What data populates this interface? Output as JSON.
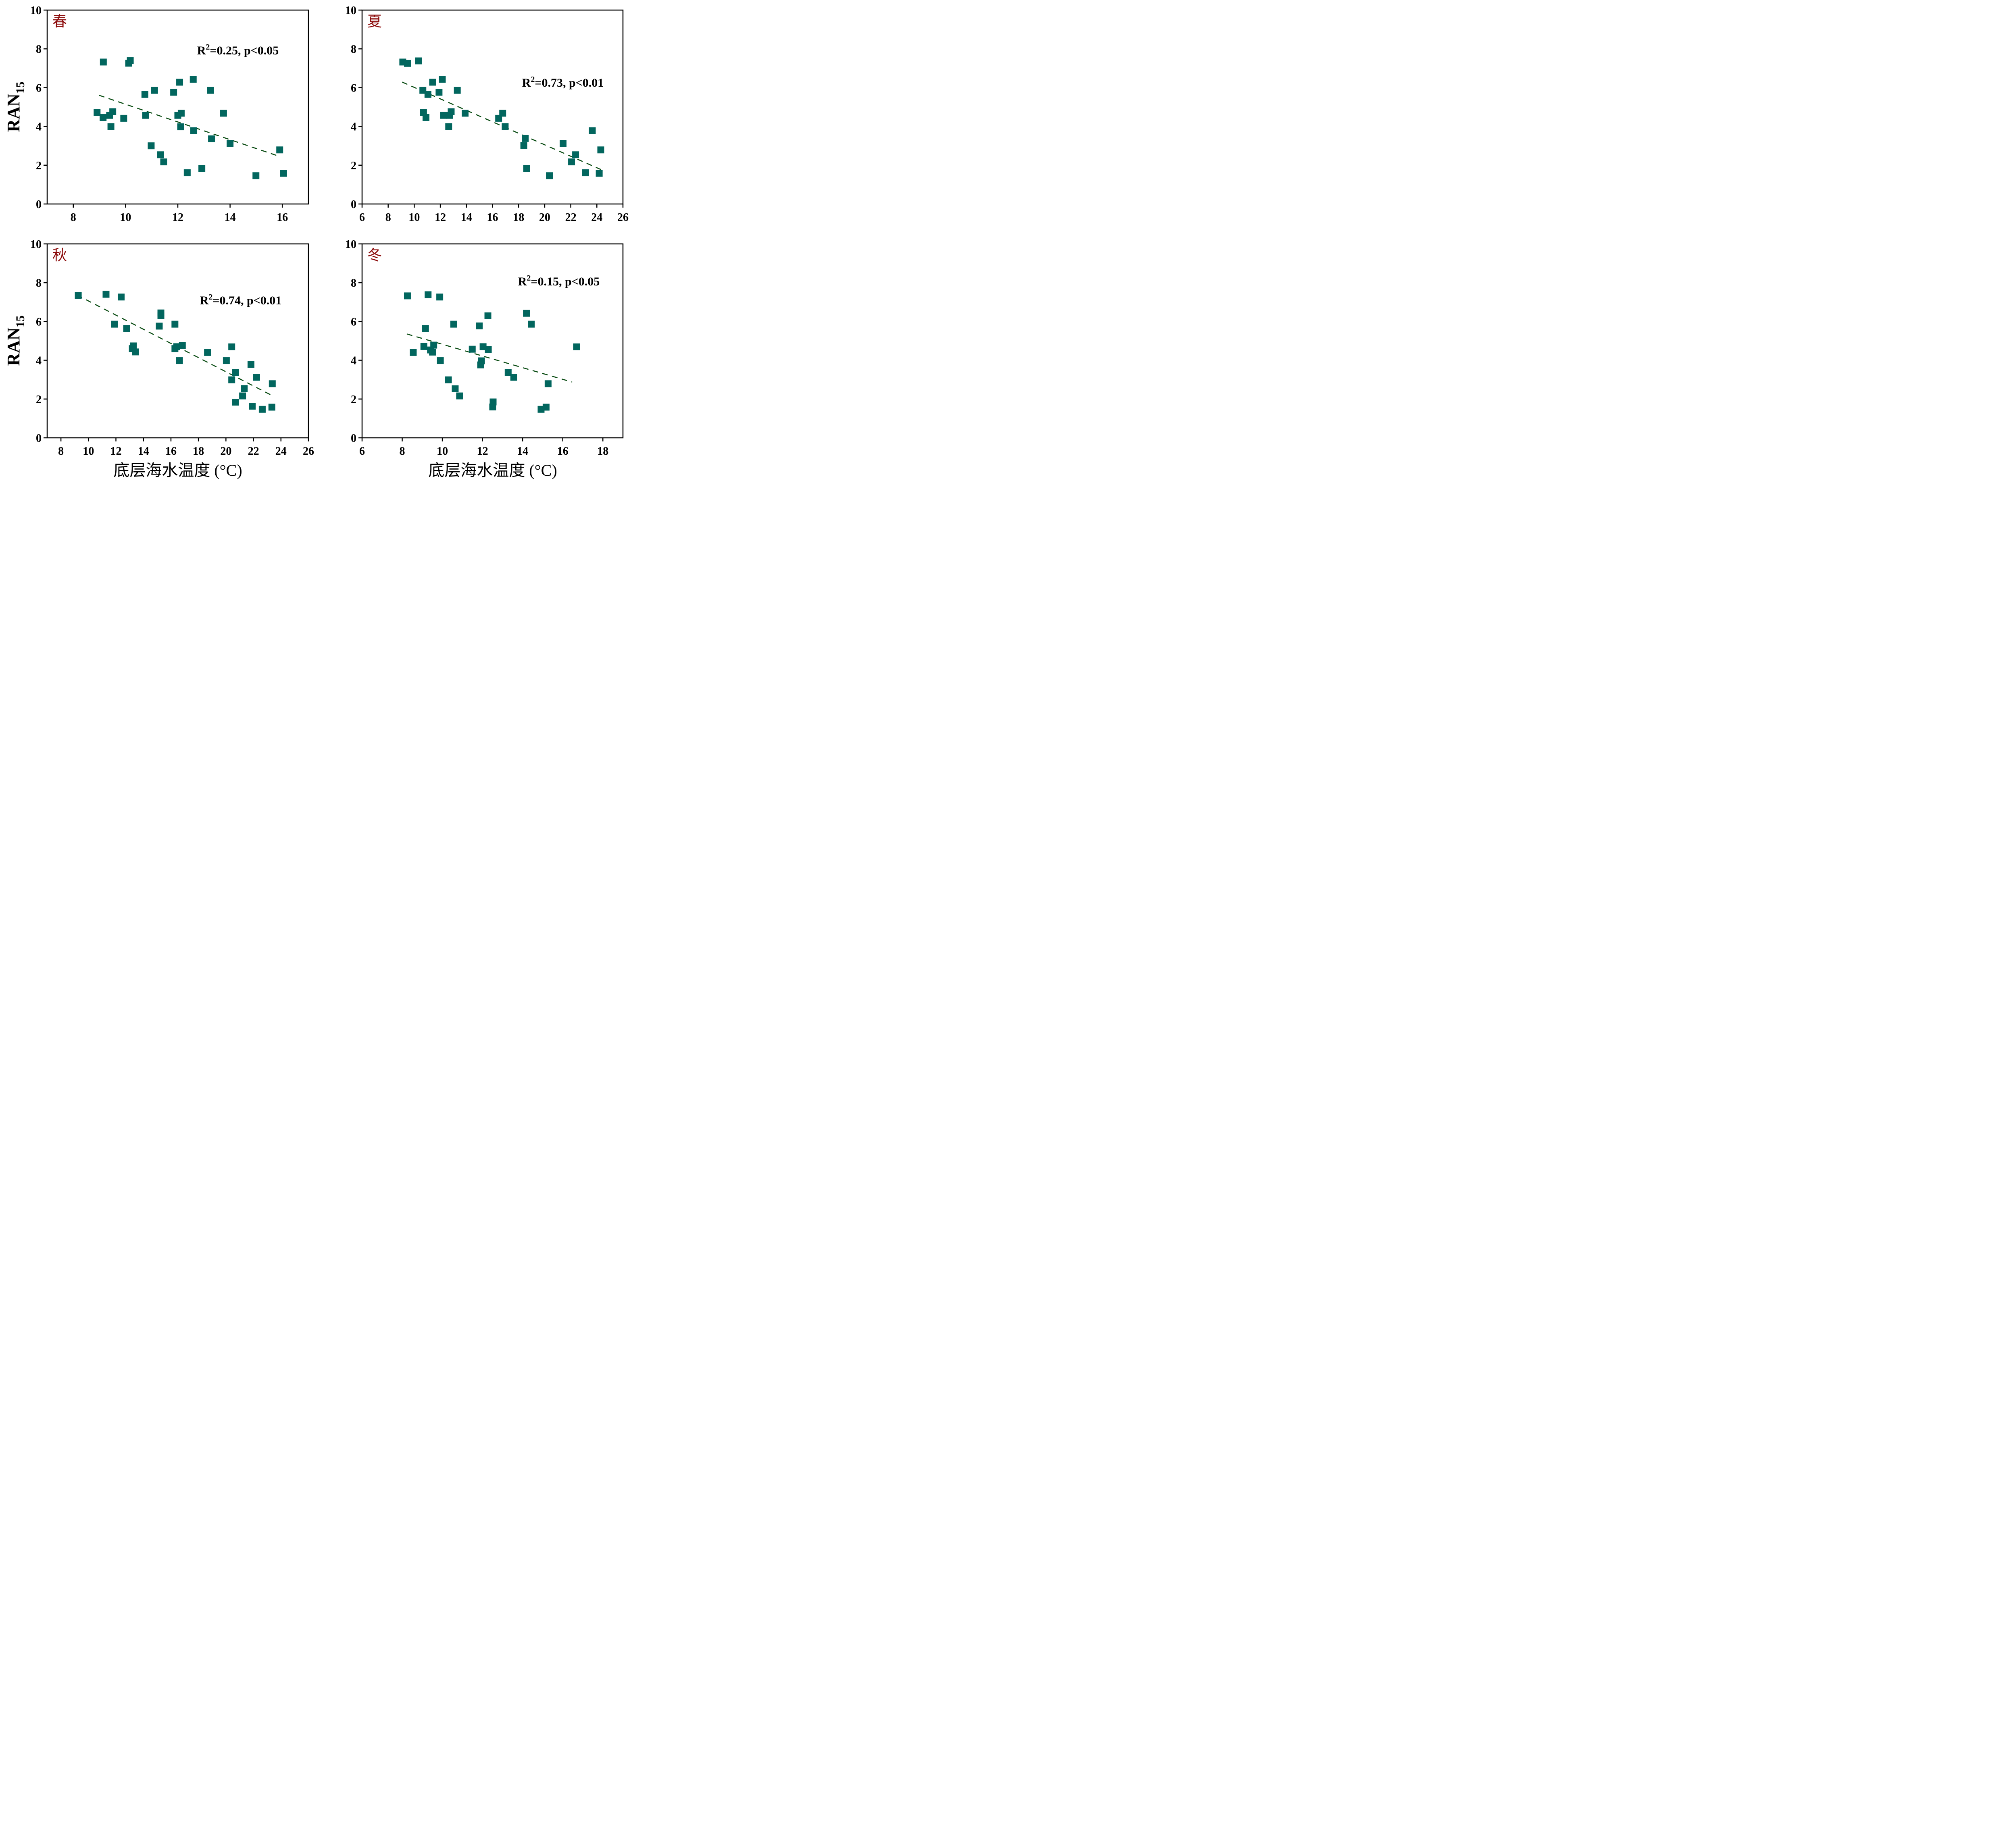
{
  "figure": {
    "marker_color": "#02665e",
    "trend_color": "#0b4d14",
    "season_label_color": "#8b0a0a",
    "axis_color": "#000000"
  },
  "chart_data": [
    {
      "type": "scatter",
      "panel": "spring",
      "season_label": "春",
      "title": "",
      "xlabel": "",
      "ylabel": "RAN",
      "ylabel_sub": "15",
      "stat_text": {
        "r": "R",
        "sup": "2",
        "rest": "=0.25, p<0.05"
      },
      "xlim": [
        7,
        17
      ],
      "ylim": [
        0,
        10
      ],
      "xticks": [
        8,
        10,
        12,
        14,
        16
      ],
      "yticks": [
        0,
        2,
        4,
        6,
        8,
        10
      ],
      "grid": false,
      "trendline": {
        "x": [
          9.0,
          15.9
        ],
        "y": [
          5.6,
          2.45
        ],
        "style": "dashed"
      },
      "points": [
        [
          9.15,
          7.32
        ],
        [
          10.12,
          7.26
        ],
        [
          10.18,
          7.39
        ],
        [
          10.74,
          5.65
        ],
        [
          11.11,
          5.86
        ],
        [
          11.84,
          5.76
        ],
        [
          12.07,
          6.28
        ],
        [
          12.59,
          6.43
        ],
        [
          13.25,
          5.86
        ],
        [
          8.91,
          4.72
        ],
        [
          9.14,
          4.46
        ],
        [
          9.39,
          4.57
        ],
        [
          9.51,
          4.76
        ],
        [
          9.44,
          3.99
        ],
        [
          9.93,
          4.42
        ],
        [
          10.77,
          4.57
        ],
        [
          12.0,
          4.57
        ],
        [
          12.13,
          4.68
        ],
        [
          12.11,
          3.98
        ],
        [
          12.61,
          3.78
        ],
        [
          13.75,
          4.68
        ],
        [
          13.29,
          3.36
        ],
        [
          14.0,
          3.12
        ],
        [
          10.98,
          3.0
        ],
        [
          11.34,
          2.54
        ],
        [
          11.46,
          2.17
        ],
        [
          12.36,
          1.61
        ],
        [
          12.92,
          1.84
        ],
        [
          14.99,
          1.46
        ],
        [
          15.9,
          2.79
        ],
        [
          16.05,
          1.58
        ]
      ]
    },
    {
      "type": "scatter",
      "panel": "summer",
      "season_label": "夏",
      "title": "",
      "xlabel": "",
      "ylabel": "",
      "ylabel_sub": "",
      "stat_text": {
        "r": "R",
        "sup": "2",
        "rest": "=0.73, p<0.01"
      },
      "xlim": [
        6,
        26
      ],
      "ylim": [
        0,
        10
      ],
      "xticks": [
        6,
        8,
        10,
        12,
        14,
        16,
        18,
        20,
        22,
        24,
        26
      ],
      "yticks": [
        0,
        2,
        4,
        6,
        8,
        10
      ],
      "grid": false,
      "trendline": {
        "x": [
          9.1,
          24.3
        ],
        "y": [
          6.28,
          1.78
        ],
        "style": "dashed"
      },
      "points": [
        [
          9.12,
          7.32
        ],
        [
          9.48,
          7.25
        ],
        [
          10.32,
          7.38
        ],
        [
          10.66,
          5.86
        ],
        [
          11.05,
          5.65
        ],
        [
          11.41,
          6.28
        ],
        [
          11.9,
          5.76
        ],
        [
          12.15,
          6.43
        ],
        [
          13.3,
          5.86
        ],
        [
          10.71,
          4.72
        ],
        [
          10.9,
          4.46
        ],
        [
          12.26,
          4.57
        ],
        [
          12.72,
          4.57
        ],
        [
          12.83,
          4.76
        ],
        [
          12.64,
          3.99
        ],
        [
          13.9,
          4.68
        ],
        [
          16.47,
          4.42
        ],
        [
          16.78,
          4.68
        ],
        [
          16.97,
          3.99
        ],
        [
          18.51,
          3.38
        ],
        [
          18.4,
          3.01
        ],
        [
          18.62,
          1.84
        ],
        [
          20.36,
          1.46
        ],
        [
          21.41,
          3.12
        ],
        [
          22.37,
          2.54
        ],
        [
          22.06,
          2.17
        ],
        [
          23.14,
          1.61
        ],
        [
          23.65,
          3.78
        ],
        [
          24.18,
          1.58
        ],
        [
          24.3,
          2.79
        ]
      ]
    },
    {
      "type": "scatter",
      "panel": "autumn",
      "season_label": "秋",
      "title": "",
      "xlabel": "底层海水温度 (°C)",
      "ylabel": "RAN",
      "ylabel_sub": "15",
      "stat_text": {
        "r": "R",
        "sup": "2",
        "rest": "=0.74, p<0.01"
      },
      "xlim": [
        7,
        26
      ],
      "ylim": [
        0,
        10
      ],
      "xticks": [
        8,
        10,
        12,
        14,
        16,
        18,
        20,
        22,
        24,
        26
      ],
      "yticks": [
        0,
        2,
        4,
        6,
        8,
        10
      ],
      "grid": false,
      "trendline": {
        "x": [
          9.2,
          23.3
        ],
        "y": [
          7.35,
          2.2
        ],
        "style": "dashed"
      },
      "points": [
        [
          9.26,
          7.33
        ],
        [
          11.28,
          7.4
        ],
        [
          12.38,
          7.26
        ],
        [
          11.91,
          5.86
        ],
        [
          12.78,
          5.64
        ],
        [
          15.27,
          6.44
        ],
        [
          15.27,
          6.29
        ],
        [
          15.15,
          5.76
        ],
        [
          16.29,
          5.86
        ],
        [
          13.26,
          4.74
        ],
        [
          13.19,
          4.6
        ],
        [
          13.41,
          4.43
        ],
        [
          16.29,
          4.6
        ],
        [
          16.42,
          4.7
        ],
        [
          16.83,
          4.76
        ],
        [
          16.62,
          3.98
        ],
        [
          18.66,
          4.4
        ],
        [
          20.42,
          4.69
        ],
        [
          20.03,
          3.98
        ],
        [
          20.7,
          3.37
        ],
        [
          20.42,
          2.99
        ],
        [
          21.82,
          3.78
        ],
        [
          22.23,
          3.12
        ],
        [
          21.33,
          2.54
        ],
        [
          21.21,
          2.16
        ],
        [
          20.69,
          1.84
        ],
        [
          21.91,
          1.63
        ],
        [
          22.64,
          1.47
        ],
        [
          23.34,
          1.58
        ],
        [
          23.37,
          2.79
        ]
      ]
    },
    {
      "type": "scatter",
      "panel": "winter",
      "season_label": "冬",
      "title": "",
      "xlabel": "底层海水温度 (°C)",
      "ylabel": "",
      "ylabel_sub": "",
      "stat_text": {
        "r": "R",
        "sup": "2",
        "rest": "=0.15, p<0.05"
      },
      "xlim": [
        6,
        19
      ],
      "ylim": [
        0,
        10
      ],
      "xticks": [
        6,
        8,
        10,
        12,
        14,
        16,
        18
      ],
      "yticks": [
        0,
        2,
        4,
        6,
        8,
        10
      ],
      "grid": false,
      "trendline": {
        "x": [
          8.25,
          16.45
        ],
        "y": [
          5.35,
          2.88
        ],
        "style": "dashed"
      },
      "points": [
        [
          8.26,
          7.32
        ],
        [
          9.29,
          7.38
        ],
        [
          9.87,
          7.26
        ],
        [
          9.16,
          5.64
        ],
        [
          10.57,
          5.86
        ],
        [
          11.84,
          5.77
        ],
        [
          12.27,
          6.29
        ],
        [
          14.19,
          6.42
        ],
        [
          14.43,
          5.86
        ],
        [
          8.55,
          4.4
        ],
        [
          9.08,
          4.71
        ],
        [
          9.41,
          4.53
        ],
        [
          9.51,
          4.42
        ],
        [
          9.57,
          4.78
        ],
        [
          9.9,
          3.98
        ],
        [
          11.49,
          4.57
        ],
        [
          12.03,
          4.7
        ],
        [
          12.29,
          4.56
        ],
        [
          11.95,
          3.97
        ],
        [
          11.91,
          3.76
        ],
        [
          16.69,
          4.69
        ],
        [
          13.28,
          3.37
        ],
        [
          13.56,
          3.12
        ],
        [
          15.27,
          2.79
        ],
        [
          10.3,
          2.99
        ],
        [
          10.64,
          2.53
        ],
        [
          10.86,
          2.16
        ],
        [
          12.53,
          1.85
        ],
        [
          12.51,
          1.59
        ],
        [
          14.92,
          1.47
        ],
        [
          15.17,
          1.58
        ]
      ]
    }
  ]
}
